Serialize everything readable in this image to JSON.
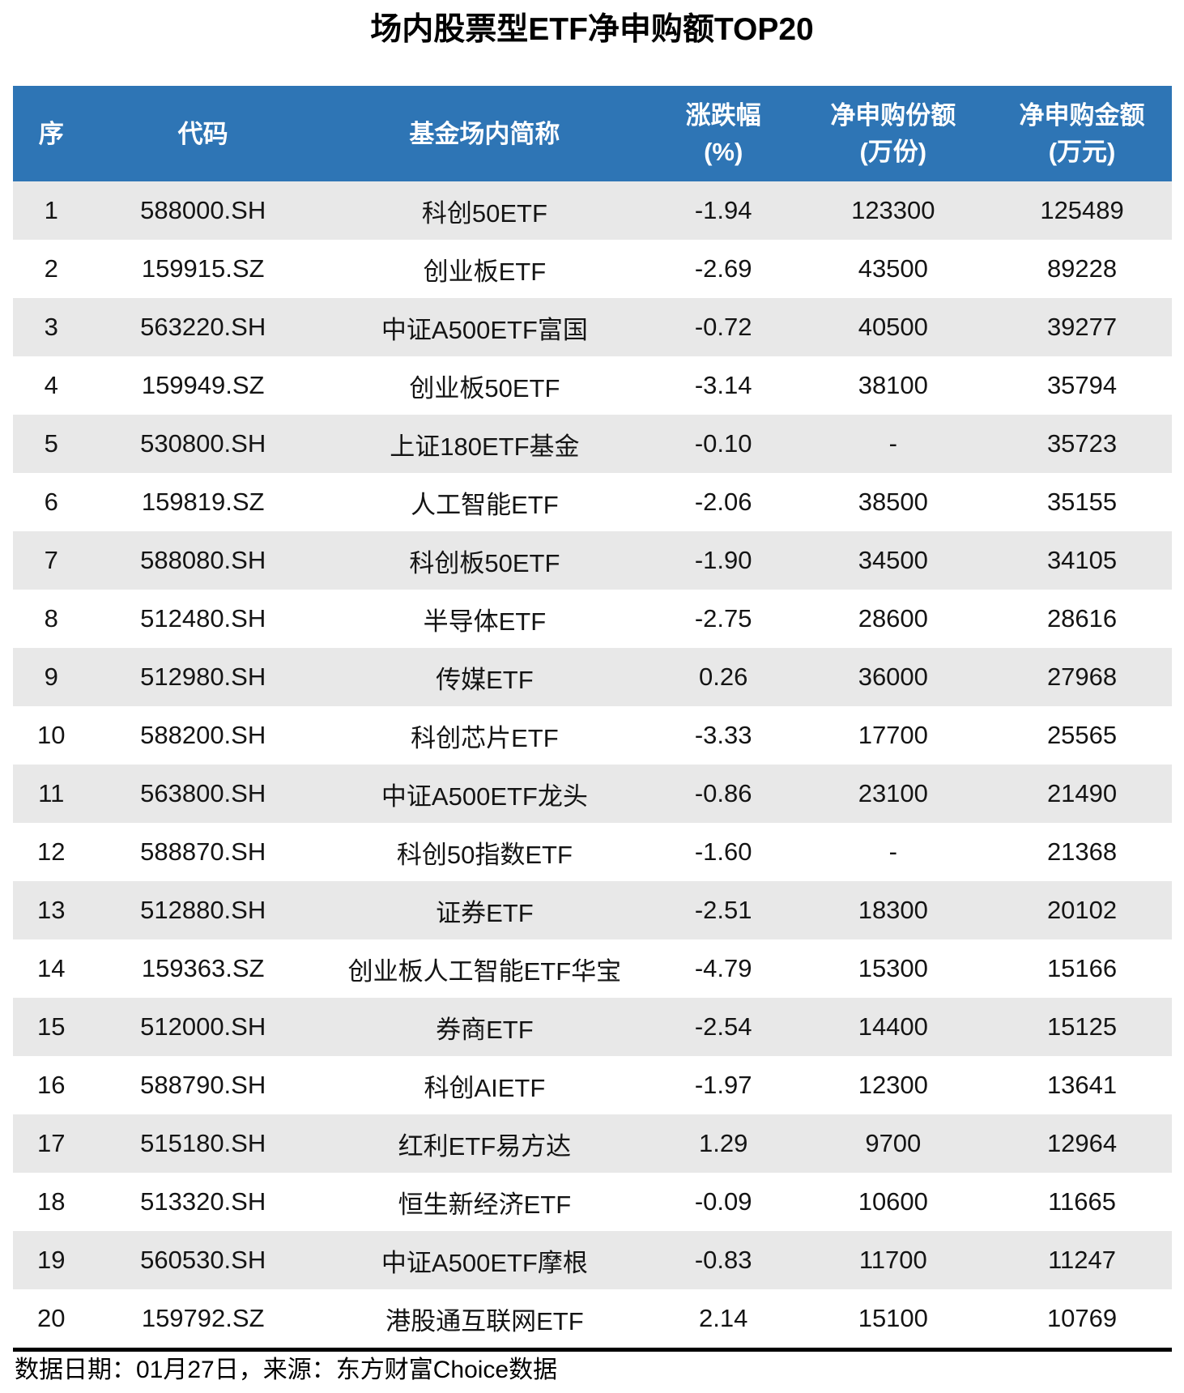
{
  "title": "场内股票型ETF净申购额TOP20",
  "footer": {
    "note": "数据日期：01月27日，来源：东方财富Choice数据"
  },
  "colors": {
    "header_bg": "#2e75b5",
    "header_text": "#ffffff",
    "row_alt_bg": "#e8e8e8",
    "body_text": "#141414",
    "divider": "#000000"
  },
  "chart_data": {
    "type": "table",
    "title": "场内股票型ETF净申购额TOP20",
    "columns": [
      {
        "key": "rank",
        "label": "序",
        "unit": ""
      },
      {
        "key": "code",
        "label": "代码",
        "unit": ""
      },
      {
        "key": "name",
        "label": "基金场内简称",
        "unit": ""
      },
      {
        "key": "change_pct",
        "label": "涨跌幅",
        "unit": "(%)"
      },
      {
        "key": "net_subscription_shares",
        "label": "净申购份额",
        "unit": "(万份)"
      },
      {
        "key": "net_subscription_amount",
        "label": "净申购金额",
        "unit": "(万元)"
      }
    ],
    "rows": [
      [
        "1",
        "588000.SH",
        "科创50ETF",
        "-1.94",
        "123300",
        "125489"
      ],
      [
        "2",
        "159915.SZ",
        "创业板ETF",
        "-2.69",
        "43500",
        "89228"
      ],
      [
        "3",
        "563220.SH",
        "中证A500ETF富国",
        "-0.72",
        "40500",
        "39277"
      ],
      [
        "4",
        "159949.SZ",
        "创业板50ETF",
        "-3.14",
        "38100",
        "35794"
      ],
      [
        "5",
        "530800.SH",
        "上证180ETF基金",
        "-0.10",
        "-",
        "35723"
      ],
      [
        "6",
        "159819.SZ",
        "人工智能ETF",
        "-2.06",
        "38500",
        "35155"
      ],
      [
        "7",
        "588080.SH",
        "科创板50ETF",
        "-1.90",
        "34500",
        "34105"
      ],
      [
        "8",
        "512480.SH",
        "半导体ETF",
        "-2.75",
        "28600",
        "28616"
      ],
      [
        "9",
        "512980.SH",
        "传媒ETF",
        "0.26",
        "36000",
        "27968"
      ],
      [
        "10",
        "588200.SH",
        "科创芯片ETF",
        "-3.33",
        "17700",
        "25565"
      ],
      [
        "11",
        "563800.SH",
        "中证A500ETF龙头",
        "-0.86",
        "23100",
        "21490"
      ],
      [
        "12",
        "588870.SH",
        "科创50指数ETF",
        "-1.60",
        "-",
        "21368"
      ],
      [
        "13",
        "512880.SH",
        "证券ETF",
        "-2.51",
        "18300",
        "20102"
      ],
      [
        "14",
        "159363.SZ",
        "创业板人工智能ETF华宝",
        "-4.79",
        "15300",
        "15166"
      ],
      [
        "15",
        "512000.SH",
        "券商ETF",
        "-2.54",
        "14400",
        "15125"
      ],
      [
        "16",
        "588790.SH",
        "科创AIETF",
        "-1.97",
        "12300",
        "13641"
      ],
      [
        "17",
        "515180.SH",
        "红利ETF易方达",
        "1.29",
        "9700",
        "12964"
      ],
      [
        "18",
        "513320.SH",
        "恒生新经济ETF",
        "-0.09",
        "10600",
        "11665"
      ],
      [
        "19",
        "560530.SH",
        "中证A500ETF摩根",
        "-0.83",
        "11700",
        "11247"
      ],
      [
        "20",
        "159792.SZ",
        "港股通互联网ETF",
        "2.14",
        "15100",
        "10769"
      ]
    ]
  }
}
